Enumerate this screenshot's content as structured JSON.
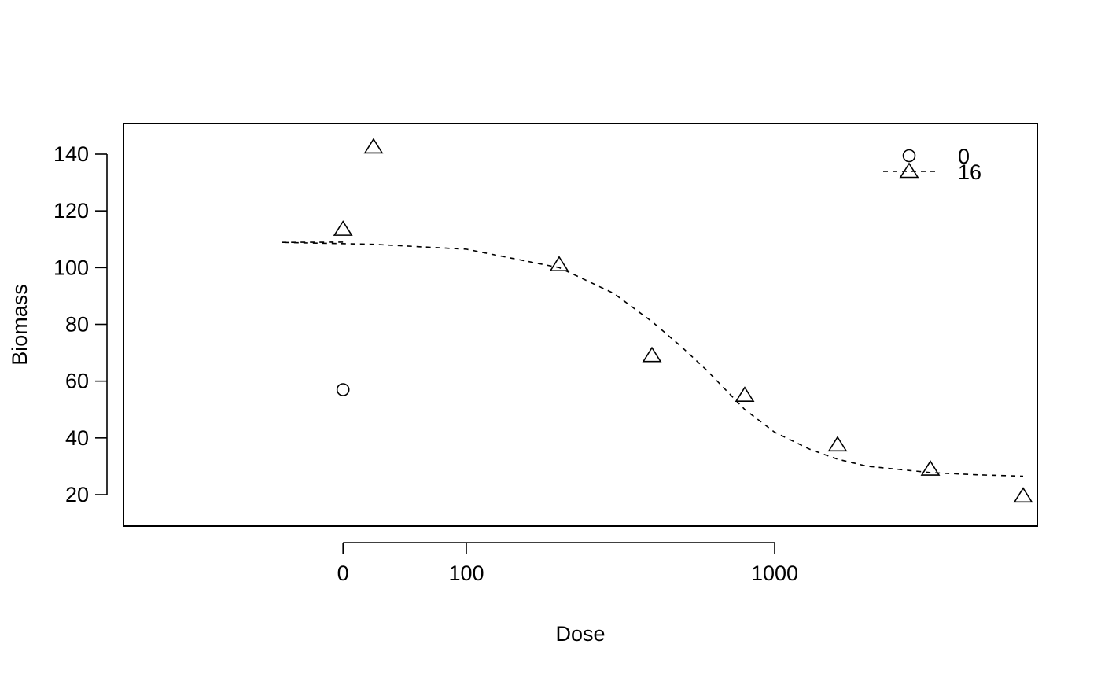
{
  "chart_data": {
    "type": "scatter",
    "title": "",
    "xlabel": "Dose",
    "ylabel": "Biomass",
    "x_scale": "log",
    "x_ticks": [
      {
        "value": 0,
        "label": "0"
      },
      {
        "value": 100,
        "label": "100"
      },
      {
        "value": 1000,
        "label": "1000"
      }
    ],
    "y_ticks": [
      20,
      40,
      60,
      80,
      100,
      120,
      140
    ],
    "ylim": [
      9,
      151
    ],
    "grid": false,
    "legend_position": "top-right",
    "series": [
      {
        "name": "0",
        "marker": "circle",
        "line": "none",
        "points": [
          {
            "x": 0,
            "y": 57
          }
        ]
      },
      {
        "name": "16",
        "marker": "triangle",
        "line": "dashed",
        "points": [
          {
            "x": 0,
            "y": 113.5
          },
          {
            "x": 50,
            "y": 142.5
          },
          {
            "x": 200,
            "y": 101
          },
          {
            "x": 400,
            "y": 69
          },
          {
            "x": 800,
            "y": 55
          },
          {
            "x": 1600,
            "y": 37.5
          },
          {
            "x": 3200,
            "y": 29
          },
          {
            "x": 6400,
            "y": 19.5
          }
        ],
        "fitted_curve": [
          {
            "x": 0,
            "y": 109
          },
          {
            "x": 25,
            "y": 108.9
          },
          {
            "x": 50,
            "y": 108.2
          },
          {
            "x": 100,
            "y": 106.5
          },
          {
            "x": 200,
            "y": 100
          },
          {
            "x": 300,
            "y": 91
          },
          {
            "x": 400,
            "y": 81
          },
          {
            "x": 500,
            "y": 72
          },
          {
            "x": 600,
            "y": 64
          },
          {
            "x": 800,
            "y": 50
          },
          {
            "x": 1000,
            "y": 42
          },
          {
            "x": 1300,
            "y": 36
          },
          {
            "x": 1600,
            "y": 32.5
          },
          {
            "x": 2000,
            "y": 30
          },
          {
            "x": 3200,
            "y": 27.8
          },
          {
            "x": 4500,
            "y": 27
          },
          {
            "x": 6400,
            "y": 26.5
          }
        ]
      }
    ]
  }
}
